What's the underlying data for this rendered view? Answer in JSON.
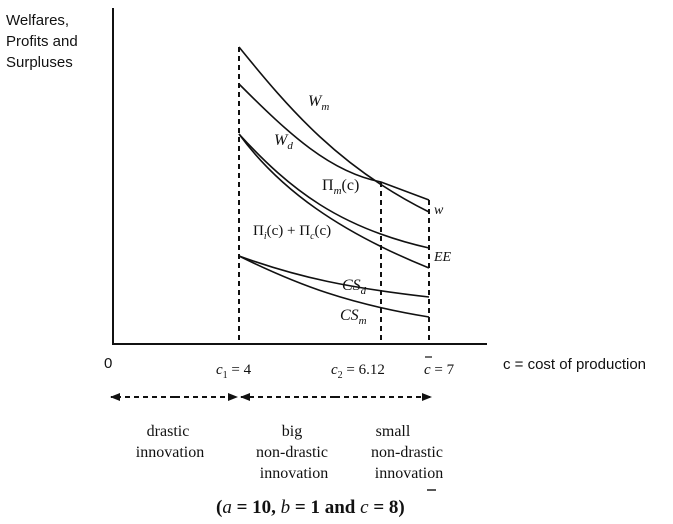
{
  "y_axis_title": [
    "Welfares,",
    "Profits and",
    "Surpluses"
  ],
  "x_axis_title": "c = cost of production",
  "origin_label": "0",
  "cost_markers": {
    "c1": {
      "sym": "c",
      "sub": "1",
      "val": " = 4"
    },
    "c2": {
      "sym": "c",
      "sub": "2",
      "val": " = 6.12"
    },
    "cbar": {
      "sym": "c",
      "val": " = 7"
    }
  },
  "curve_labels": {
    "Wm": {
      "main": "W",
      "sub": "m"
    },
    "Wd": {
      "main": "W",
      "sub": "d"
    },
    "Pim": {
      "main": "Π",
      "sub": "m",
      "tail": "(c)"
    },
    "Pisum": {
      "a": "Π",
      "asub": "i",
      "b": "(c) + Π",
      "bsub": "c",
      "c": "(c)"
    },
    "w": "w",
    "EE": "EE",
    "CSd": {
      "main": "CS",
      "sub": "d"
    },
    "CSm": {
      "main": "CS",
      "sub": "m"
    }
  },
  "regions": {
    "drastic": [
      "drastic",
      "innovation"
    ],
    "big": [
      "big",
      "non-drastic",
      "innovation"
    ],
    "small": [
      "small",
      "non-drastic",
      "innovation"
    ]
  },
  "parameters": {
    "open": "(",
    "a": "a",
    "a_val": " = 10, ",
    "b": "b",
    "b_val": " = 1 and ",
    "c": "c",
    "c_val": " = 8)"
  }
}
